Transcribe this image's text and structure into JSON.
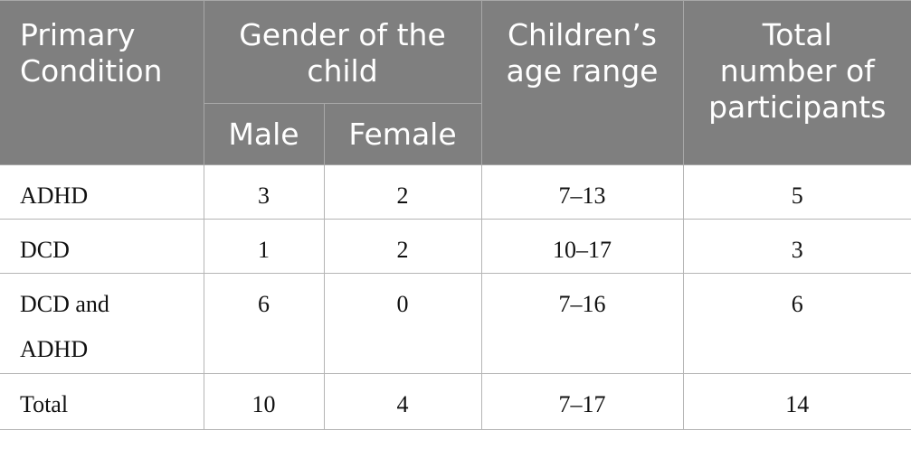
{
  "table": {
    "header": {
      "primary_condition": [
        "Primary",
        "Condition"
      ],
      "gender": [
        "Gender of the",
        "child"
      ],
      "male": "Male",
      "female": "Female",
      "age_range": [
        "Children’s",
        "age range"
      ],
      "total": [
        "Total",
        "number of",
        "participants"
      ]
    },
    "rows": [
      {
        "condition": [
          "ADHD"
        ],
        "male": "3",
        "female": "2",
        "age": "7–13",
        "total": "5"
      },
      {
        "condition": [
          "DCD"
        ],
        "male": "1",
        "female": "2",
        "age": "10–17",
        "total": "3"
      },
      {
        "condition": [
          "DCD and",
          "ADHD"
        ],
        "male": "6",
        "female": "0",
        "age": "7–16",
        "total": "6"
      },
      {
        "condition": [
          "Total"
        ],
        "male": "10",
        "female": "4",
        "age": "7–17",
        "total": "14"
      }
    ]
  }
}
